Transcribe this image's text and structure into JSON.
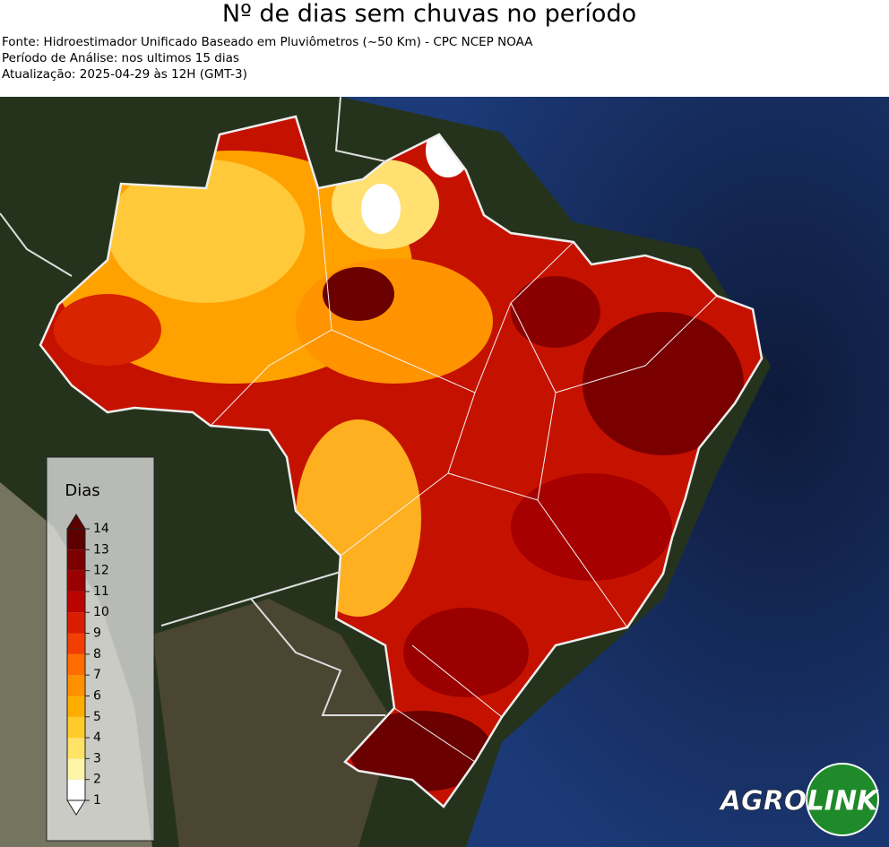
{
  "header": {
    "title": "Nº de dias sem chuvas no período",
    "lines": [
      "Fonte: Hidroestimador Unificado Baseado em Pluviômetros (~50 Km) - CPC NCEP NOAA",
      "Período de Análise: nos ultimos 15 dias",
      "Atualização: 2025-04-29 às 12H (GMT-3)"
    ]
  },
  "legend": {
    "title": "Dias",
    "lim": [
      1,
      14
    ],
    "ticks": [
      1,
      2,
      3,
      4,
      5,
      6,
      7,
      8,
      9,
      10,
      11,
      12,
      13,
      14
    ],
    "colors": [
      "#ffffff",
      "#fff5a8",
      "#ffe266",
      "#ffcb2a",
      "#ffae00",
      "#ff9000",
      "#ff6c00",
      "#f23e00",
      "#da1c00",
      "#bb0400",
      "#9a0000",
      "#7c0000",
      "#5c0000"
    ]
  },
  "logo": {
    "left": "AGRO",
    "right": "LINK"
  }
}
